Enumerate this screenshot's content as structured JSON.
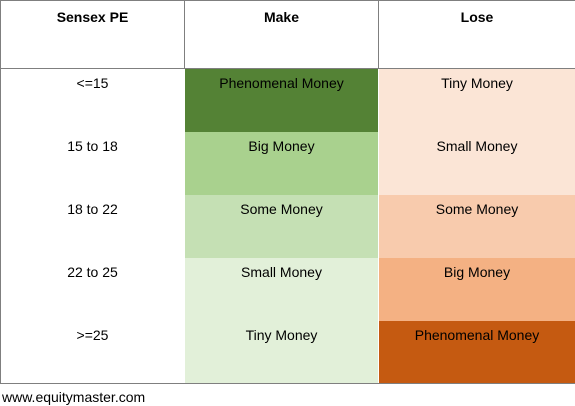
{
  "table": {
    "headers": [
      "Sensex PE",
      "Make",
      "Lose"
    ],
    "rows": [
      {
        "pe": "<=15",
        "make": "Phenomenal Money",
        "lose": "Tiny Money",
        "make_color": "#548235",
        "lose_color": "#fbe5d6"
      },
      {
        "pe": "15 to 18",
        "make": "Big Money",
        "lose": "Small Money",
        "make_color": "#a9d18e",
        "lose_color": "#fbe5d6"
      },
      {
        "pe": "18 to 22",
        "make": "Some Money",
        "lose": "Some Money",
        "make_color": "#c5e0b4",
        "lose_color": "#f8cbad"
      },
      {
        "pe": "22 to 25",
        "make": "Small Money",
        "lose": "Big Money",
        "make_color": "#e2f0d9",
        "lose_color": "#f4b183"
      },
      {
        "pe": ">=25",
        "make": "Tiny Money",
        "lose": "Phenomenal Money",
        "make_color": "#e2f0d9",
        "lose_color": "#c55a11"
      }
    ]
  },
  "source": "www.equitymaster.com"
}
